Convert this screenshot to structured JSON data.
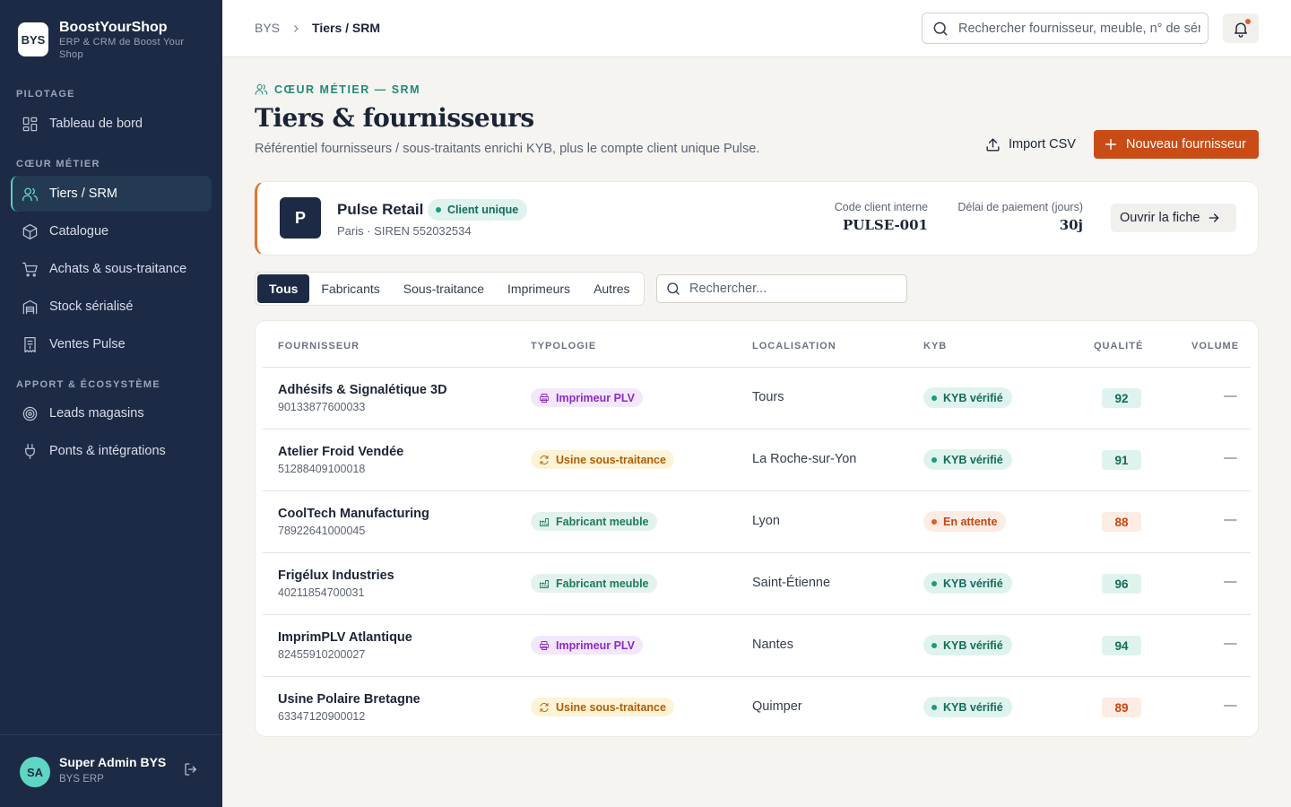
{
  "brand": {
    "logo": "BYS",
    "name": "BoostYourShop",
    "subtitle": "ERP & CRM de Boost Your Shop"
  },
  "sidebar": {
    "sections": [
      "PILOTAGE",
      "CŒUR MÉTIER",
      "APPORT & ÉCOSYSTÈME"
    ],
    "items": [
      {
        "label": "Tableau de bord",
        "icon": "dashboard-icon"
      },
      {
        "label": "Tiers / SRM",
        "icon": "users-icon",
        "active": true
      },
      {
        "label": "Catalogue",
        "icon": "box-icon"
      },
      {
        "label": "Achats & sous-traitance",
        "icon": "cart-icon"
      },
      {
        "label": "Stock sérialisé",
        "icon": "warehouse-icon"
      },
      {
        "label": "Ventes Pulse",
        "icon": "receipt-icon"
      },
      {
        "label": "Leads magasins",
        "icon": "target-icon"
      },
      {
        "label": "Ponts & intégrations",
        "icon": "plug-icon"
      }
    ],
    "user": {
      "initials": "SA",
      "name": "Super Admin BYS",
      "role": "BYS ERP"
    }
  },
  "topbar": {
    "breadcrumb": [
      "BYS",
      "Tiers / SRM"
    ],
    "search_placeholder": "Rechercher fournisseur, meuble, n° de série…",
    "has_notification": true
  },
  "header": {
    "eyebrow": "CŒUR MÉTIER — SRM",
    "title": "Tiers & fournisseurs",
    "subtitle": "Référentiel fournisseurs / sous-traitants enrichi KYB, plus le compte client unique Pulse.",
    "import_label": "Import CSV",
    "new_label": "Nouveau fournisseur"
  },
  "pulse": {
    "initial": "P",
    "name": "Pulse Retail",
    "badge": "Client unique",
    "meta": "Paris · SIREN 552032534",
    "code_label": "Code client interne",
    "code_value": "PULSE-001",
    "delay_label": "Délai de paiement (jours)",
    "delay_value": "30j",
    "open_label": "Ouvrir la fiche"
  },
  "filters": {
    "tabs": [
      "Tous",
      "Fabricants",
      "Sous-traitance",
      "Imprimeurs",
      "Autres"
    ],
    "active": "Tous",
    "search_placeholder": "Rechercher..."
  },
  "table": {
    "columns": [
      "FOURNISSEUR",
      "TYPOLOGIE",
      "LOCALISATION",
      "KYB",
      "QUALITÉ",
      "VOLUME"
    ],
    "rows": [
      {
        "name": "Adhésifs & Signalétique 3D",
        "siret": "90133877600033",
        "type": "Imprimeur PLV",
        "type_kind": "plv",
        "location": "Tours",
        "kyb": "KYB vérifié",
        "kyb_kind": "ok",
        "quality": "92",
        "quality_kind": "hi",
        "volume": "—"
      },
      {
        "name": "Atelier Froid Vendée",
        "siret": "51288409100018",
        "type": "Usine sous-traitance",
        "type_kind": "sub",
        "location": "La Roche-sur-Yon",
        "kyb": "KYB vérifié",
        "kyb_kind": "ok",
        "quality": "91",
        "quality_kind": "hi",
        "volume": "—"
      },
      {
        "name": "CoolTech Manufacturing",
        "siret": "78922641000045",
        "type": "Fabricant meuble",
        "type_kind": "fab",
        "location": "Lyon",
        "kyb": "En attente",
        "kyb_kind": "wait",
        "quality": "88",
        "quality_kind": "mid",
        "volume": "—"
      },
      {
        "name": "Frigélux Industries",
        "siret": "40211854700031",
        "type": "Fabricant meuble",
        "type_kind": "fab",
        "location": "Saint-Étienne",
        "kyb": "KYB vérifié",
        "kyb_kind": "ok",
        "quality": "96",
        "quality_kind": "hi",
        "volume": "—"
      },
      {
        "name": "ImprimPLV Atlantique",
        "siret": "82455910200027",
        "type": "Imprimeur PLV",
        "type_kind": "plv",
        "location": "Nantes",
        "kyb": "KYB vérifié",
        "kyb_kind": "ok",
        "quality": "94",
        "quality_kind": "hi",
        "volume": "—"
      },
      {
        "name": "Usine Polaire Bretagne",
        "siret": "63347120900012",
        "type": "Usine sous-traitance",
        "type_kind": "sub",
        "location": "Quimper",
        "kyb": "KYB vérifié",
        "kyb_kind": "ok",
        "quality": "89",
        "quality_kind": "mid",
        "volume": "—"
      }
    ]
  },
  "colors": {
    "sidebar_bg": "#1c2a45",
    "accent_teal": "#1e8b76",
    "primary_orange": "#c94c17",
    "pulse_border": "#e3742f"
  }
}
